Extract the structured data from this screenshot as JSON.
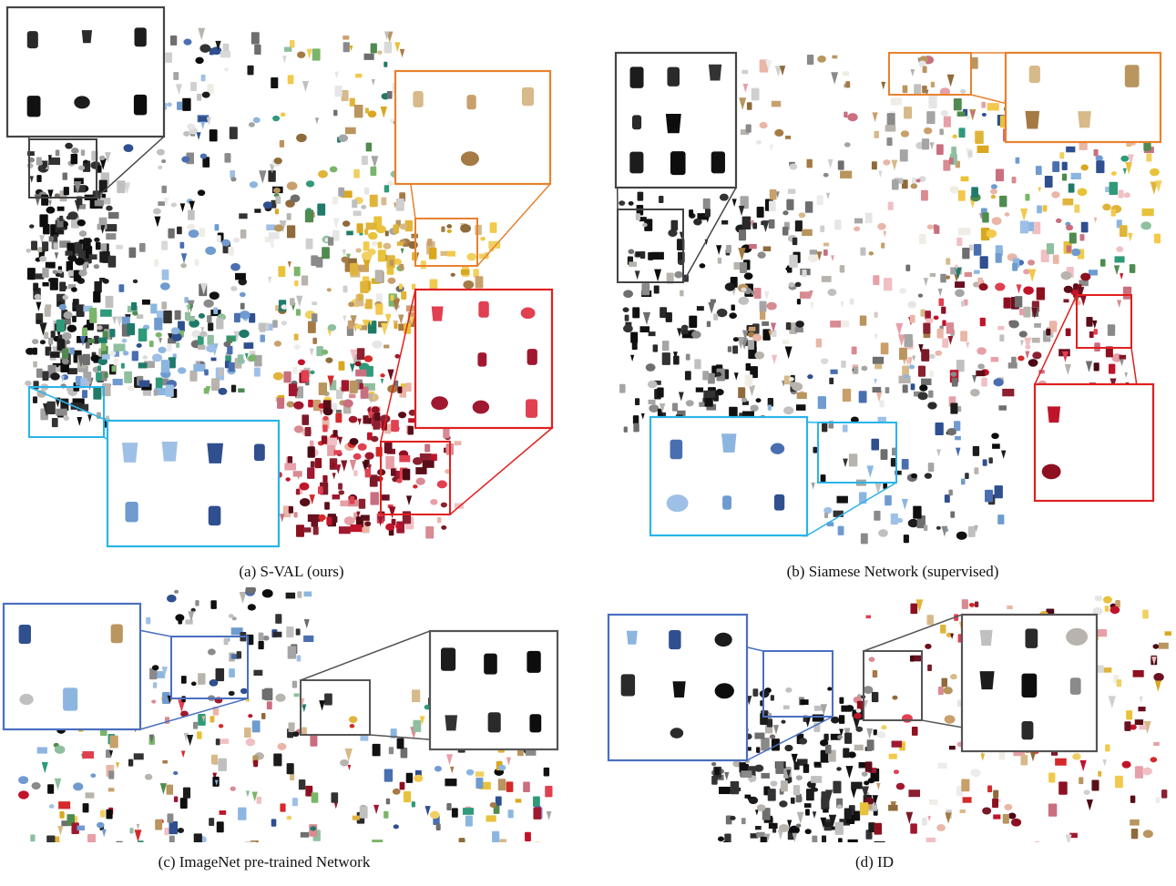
{
  "figure": {
    "captions": {
      "a": "(a) S-VAL (ours)",
      "b": "(b) Siamese Network (supervised)",
      "c": "(c) ImageNet pre-trained Network",
      "d": "(d) ID"
    },
    "panels": [
      {
        "id": "a",
        "zoom_groups": [
          {
            "color": "#444444",
            "theme": "black clothing"
          },
          {
            "color": "#e8822e",
            "theme": "tan / brown items"
          },
          {
            "color": "#e02020",
            "theme": "red items"
          },
          {
            "color": "#2ab4ea",
            "theme": "light blue denim"
          }
        ]
      },
      {
        "id": "b",
        "zoom_groups": [
          {
            "color": "#444444",
            "theme": "black items"
          },
          {
            "color": "#e8822e",
            "theme": "pink / beige items"
          },
          {
            "color": "#e02020",
            "theme": "red items"
          },
          {
            "color": "#2ab4ea",
            "theme": "denim"
          }
        ]
      },
      {
        "id": "c",
        "zoom_groups": [
          {
            "color": "#4a6fc0",
            "theme": "jeans and trousers"
          },
          {
            "color": "#555555",
            "theme": "black jackets"
          }
        ]
      },
      {
        "id": "d",
        "zoom_groups": [
          {
            "color": "#4a6fc0",
            "theme": "jeans"
          },
          {
            "color": "#555555",
            "theme": "black boots"
          }
        ]
      }
    ]
  }
}
